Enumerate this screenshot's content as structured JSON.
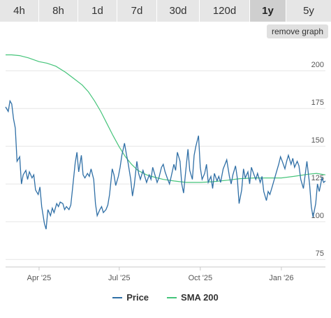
{
  "ranges": {
    "items": [
      "4h",
      "8h",
      "1d",
      "7d",
      "30d",
      "120d",
      "1y",
      "5y"
    ],
    "active": "1y"
  },
  "remove_graph_label": "remove graph",
  "colors": {
    "price": "#2f6fa6",
    "sma": "#45c47a",
    "grid": "#e6e6e6",
    "tab_bg": "#e6e6e6",
    "tab_active": "#cfcfcf"
  },
  "chart_data": {
    "type": "line",
    "title": "",
    "xlabel": "",
    "ylabel": "",
    "y_ticks": [
      75,
      100,
      125,
      150,
      175,
      200
    ],
    "ylim": [
      70,
      220
    ],
    "x_range": [
      "2025-02-22",
      "2026-02-20"
    ],
    "x_ticks": [
      {
        "date": "2025-04-01",
        "label": "Apr '25"
      },
      {
        "date": "2025-07-01",
        "label": "Jul '25"
      },
      {
        "date": "2025-10-01",
        "label": "Oct '25"
      },
      {
        "date": "2026-01-01",
        "label": "Jan '26"
      }
    ],
    "grid": "horizontal",
    "legend": "bottom-center",
    "series": [
      {
        "name": "Price",
        "color": "#2f6fa6",
        "points": [
          [
            "2025-02-22",
            176
          ],
          [
            "2025-02-25",
            173
          ],
          [
            "2025-02-27",
            180
          ],
          [
            "2025-03-01",
            178
          ],
          [
            "2025-03-03",
            168
          ],
          [
            "2025-03-05",
            162
          ],
          [
            "2025-03-07",
            140
          ],
          [
            "2025-03-10",
            143
          ],
          [
            "2025-03-12",
            125
          ],
          [
            "2025-03-14",
            131
          ],
          [
            "2025-03-17",
            134
          ],
          [
            "2025-03-19",
            128
          ],
          [
            "2025-03-21",
            133
          ],
          [
            "2025-03-24",
            129
          ],
          [
            "2025-03-26",
            131
          ],
          [
            "2025-03-28",
            121
          ],
          [
            "2025-03-31",
            118
          ],
          [
            "2025-04-02",
            123
          ],
          [
            "2025-04-04",
            110
          ],
          [
            "2025-04-07",
            99
          ],
          [
            "2025-04-09",
            95
          ],
          [
            "2025-04-11",
            108
          ],
          [
            "2025-04-14",
            104
          ],
          [
            "2025-04-16",
            109
          ],
          [
            "2025-04-18",
            106
          ],
          [
            "2025-04-21",
            112
          ],
          [
            "2025-04-23",
            110
          ],
          [
            "2025-04-25",
            113
          ],
          [
            "2025-04-28",
            112
          ],
          [
            "2025-04-30",
            108
          ],
          [
            "2025-05-02",
            110
          ],
          [
            "2025-05-05",
            108
          ],
          [
            "2025-05-07",
            111
          ],
          [
            "2025-05-09",
            122
          ],
          [
            "2025-05-12",
            139
          ],
          [
            "2025-05-14",
            146
          ],
          [
            "2025-05-16",
            133
          ],
          [
            "2025-05-19",
            144
          ],
          [
            "2025-05-21",
            131
          ],
          [
            "2025-05-23",
            129
          ],
          [
            "2025-05-26",
            132
          ],
          [
            "2025-05-28",
            130
          ],
          [
            "2025-05-30",
            135
          ],
          [
            "2025-06-02",
            128
          ],
          [
            "2025-06-04",
            112
          ],
          [
            "2025-06-06",
            104
          ],
          [
            "2025-06-09",
            108
          ],
          [
            "2025-06-11",
            110
          ],
          [
            "2025-06-13",
            106
          ],
          [
            "2025-06-16",
            108
          ],
          [
            "2025-06-18",
            111
          ],
          [
            "2025-06-20",
            118
          ],
          [
            "2025-06-23",
            135
          ],
          [
            "2025-06-25",
            131
          ],
          [
            "2025-06-27",
            124
          ],
          [
            "2025-06-30",
            130
          ],
          [
            "2025-07-02",
            136
          ],
          [
            "2025-07-04",
            144
          ],
          [
            "2025-07-07",
            152
          ],
          [
            "2025-07-09",
            145
          ],
          [
            "2025-07-11",
            139
          ],
          [
            "2025-07-14",
            128
          ],
          [
            "2025-07-16",
            117
          ],
          [
            "2025-07-18",
            124
          ],
          [
            "2025-07-21",
            140
          ],
          [
            "2025-07-23",
            132
          ],
          [
            "2025-07-25",
            128
          ],
          [
            "2025-07-28",
            134
          ],
          [
            "2025-07-30",
            130
          ],
          [
            "2025-08-01",
            126
          ],
          [
            "2025-08-04",
            131
          ],
          [
            "2025-08-06",
            128
          ],
          [
            "2025-08-08",
            136
          ],
          [
            "2025-08-11",
            130
          ],
          [
            "2025-08-13",
            126
          ],
          [
            "2025-08-15",
            129
          ],
          [
            "2025-08-18",
            136
          ],
          [
            "2025-08-20",
            138
          ],
          [
            "2025-08-22",
            133
          ],
          [
            "2025-08-25",
            128
          ],
          [
            "2025-08-27",
            125
          ],
          [
            "2025-08-29",
            130
          ],
          [
            "2025-09-01",
            138
          ],
          [
            "2025-09-03",
            134
          ],
          [
            "2025-09-05",
            146
          ],
          [
            "2025-09-08",
            140
          ],
          [
            "2025-09-10",
            125
          ],
          [
            "2025-09-12",
            119
          ],
          [
            "2025-09-15",
            137
          ],
          [
            "2025-09-17",
            148
          ],
          [
            "2025-09-19",
            134
          ],
          [
            "2025-09-22",
            128
          ],
          [
            "2025-09-24",
            144
          ],
          [
            "2025-09-26",
            150
          ],
          [
            "2025-09-29",
            157
          ],
          [
            "2025-10-01",
            136
          ],
          [
            "2025-10-03",
            128
          ],
          [
            "2025-10-06",
            132
          ],
          [
            "2025-10-08",
            138
          ],
          [
            "2025-10-10",
            126
          ],
          [
            "2025-10-13",
            130
          ],
          [
            "2025-10-15",
            122
          ],
          [
            "2025-10-17",
            132
          ],
          [
            "2025-10-20",
            127
          ],
          [
            "2025-10-22",
            130
          ],
          [
            "2025-10-24",
            126
          ],
          [
            "2025-10-27",
            135
          ],
          [
            "2025-10-29",
            138
          ],
          [
            "2025-10-31",
            141
          ],
          [
            "2025-11-03",
            130
          ],
          [
            "2025-11-05",
            125
          ],
          [
            "2025-11-07",
            131
          ],
          [
            "2025-11-10",
            137
          ],
          [
            "2025-11-12",
            129
          ],
          [
            "2025-11-14",
            112
          ],
          [
            "2025-11-17",
            121
          ],
          [
            "2025-11-19",
            135
          ],
          [
            "2025-11-21",
            129
          ],
          [
            "2025-11-24",
            133
          ],
          [
            "2025-11-26",
            125
          ],
          [
            "2025-11-28",
            136
          ],
          [
            "2025-12-01",
            131
          ],
          [
            "2025-12-03",
            128
          ],
          [
            "2025-12-05",
            132
          ],
          [
            "2025-12-08",
            126
          ],
          [
            "2025-12-10",
            130
          ],
          [
            "2025-12-12",
            120
          ],
          [
            "2025-12-15",
            114
          ],
          [
            "2025-12-17",
            120
          ],
          [
            "2025-12-19",
            118
          ],
          [
            "2025-12-22",
            124
          ],
          [
            "2025-12-24",
            128
          ],
          [
            "2025-12-26",
            132
          ],
          [
            "2025-12-29",
            138
          ],
          [
            "2025-12-31",
            143
          ],
          [
            "2026-01-02",
            140
          ],
          [
            "2026-01-05",
            135
          ],
          [
            "2026-01-07",
            140
          ],
          [
            "2026-01-09",
            144
          ],
          [
            "2026-01-12",
            138
          ],
          [
            "2026-01-14",
            142
          ],
          [
            "2026-01-16",
            136
          ],
          [
            "2026-01-19",
            140
          ],
          [
            "2026-01-21",
            137
          ],
          [
            "2026-01-23",
            128
          ],
          [
            "2026-01-26",
            122
          ],
          [
            "2026-01-28",
            131
          ],
          [
            "2026-01-30",
            140
          ],
          [
            "2026-02-02",
            125
          ],
          [
            "2026-02-04",
            110
          ],
          [
            "2026-02-06",
            103
          ],
          [
            "2026-02-09",
            112
          ],
          [
            "2026-02-11",
            125
          ],
          [
            "2026-02-13",
            120
          ],
          [
            "2026-02-16",
            129
          ],
          [
            "2026-02-18",
            126
          ],
          [
            "2026-02-20",
            127
          ]
        ]
      },
      {
        "name": "SMA 200",
        "color": "#45c47a",
        "points": [
          [
            "2025-02-22",
            210.5
          ],
          [
            "2025-03-01",
            210.5
          ],
          [
            "2025-03-10",
            210
          ],
          [
            "2025-03-20",
            208.5
          ],
          [
            "2025-04-01",
            206
          ],
          [
            "2025-04-10",
            205
          ],
          [
            "2025-04-20",
            203
          ],
          [
            "2025-05-01",
            199
          ],
          [
            "2025-05-10",
            195
          ],
          [
            "2025-05-20",
            190.5
          ],
          [
            "2025-05-27",
            186
          ],
          [
            "2025-06-03",
            180
          ],
          [
            "2025-06-10",
            173
          ],
          [
            "2025-06-17",
            165
          ],
          [
            "2025-06-24",
            157
          ],
          [
            "2025-07-01",
            149.5
          ],
          [
            "2025-07-08",
            143
          ],
          [
            "2025-07-15",
            138
          ],
          [
            "2025-07-22",
            134
          ],
          [
            "2025-08-01",
            131
          ],
          [
            "2025-08-10",
            129.5
          ],
          [
            "2025-08-20",
            128
          ],
          [
            "2025-09-01",
            127
          ],
          [
            "2025-09-15",
            126
          ],
          [
            "2025-10-01",
            126
          ],
          [
            "2025-10-15",
            126.5
          ],
          [
            "2025-11-01",
            127.5
          ],
          [
            "2025-11-15",
            128.5
          ],
          [
            "2025-12-01",
            129
          ],
          [
            "2025-12-15",
            129
          ],
          [
            "2026-01-01",
            129
          ],
          [
            "2026-01-15",
            130
          ],
          [
            "2026-02-01",
            131.5
          ],
          [
            "2026-02-10",
            132
          ],
          [
            "2026-02-20",
            131
          ]
        ]
      }
    ]
  }
}
